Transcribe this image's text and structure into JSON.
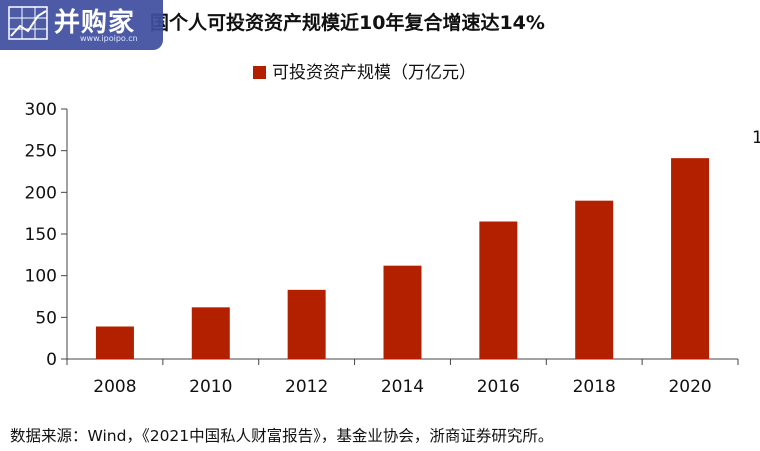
{
  "watermark": {
    "brand": "并购家",
    "url": "www.ipoipo.cn"
  },
  "chart_data": {
    "type": "bar",
    "title": "国个人可投资资产规模近10年复合增速达14%",
    "categories": [
      "2008",
      "2010",
      "2012",
      "2014",
      "2016",
      "2018",
      "2020"
    ],
    "series": [
      {
        "name": "可投资资产规模（万亿元）",
        "values": [
          39,
          62,
          83,
          112,
          165,
          190,
          241
        ],
        "color": "#b32000"
      }
    ],
    "ylim": [
      0,
      300
    ],
    "yticks": [
      0,
      50,
      100,
      150,
      200,
      250,
      300
    ],
    "legend_position": "top-center",
    "grid": false
  },
  "source": "数据来源：Wind，《2021中国私人财富报告》，基金业协会，浙商证券研究所。",
  "edge_fragment": "1"
}
